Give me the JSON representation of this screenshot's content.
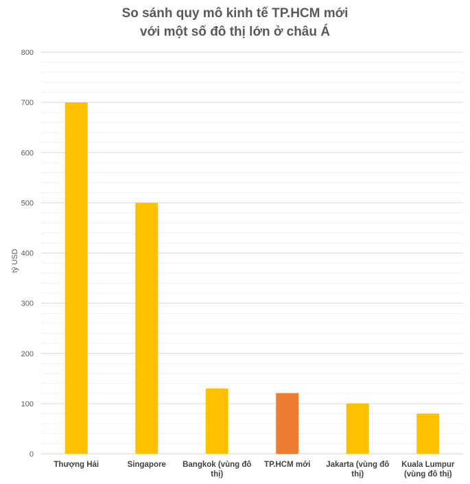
{
  "chart_data": {
    "type": "bar",
    "title_lines": [
      "So sánh quy mô kinh tế TP.HCM mới",
      "với một số đô thị lớn ở châu Á"
    ],
    "ylabel": "tỷ USD",
    "xlabel": "",
    "ylim": [
      0,
      800
    ],
    "yticks": [
      0,
      100,
      200,
      300,
      400,
      500,
      600,
      700,
      800
    ],
    "grid": true,
    "legend": "none",
    "categories": [
      [
        "Thượng Hải"
      ],
      [
        "Singapore"
      ],
      [
        "Bangkok (vùng đô",
        "thị)"
      ],
      [
        "TP.HCM mới"
      ],
      [
        "Jakarta (vùng đô",
        "thị)"
      ],
      [
        "Kuala Lumpur",
        "(vùng đô thị)"
      ]
    ],
    "values": [
      700,
      500,
      130,
      121,
      100,
      80
    ],
    "colors": [
      "#FFC000",
      "#FFC000",
      "#FFC000",
      "#ED7D31",
      "#FFC000",
      "#FFC000"
    ]
  }
}
